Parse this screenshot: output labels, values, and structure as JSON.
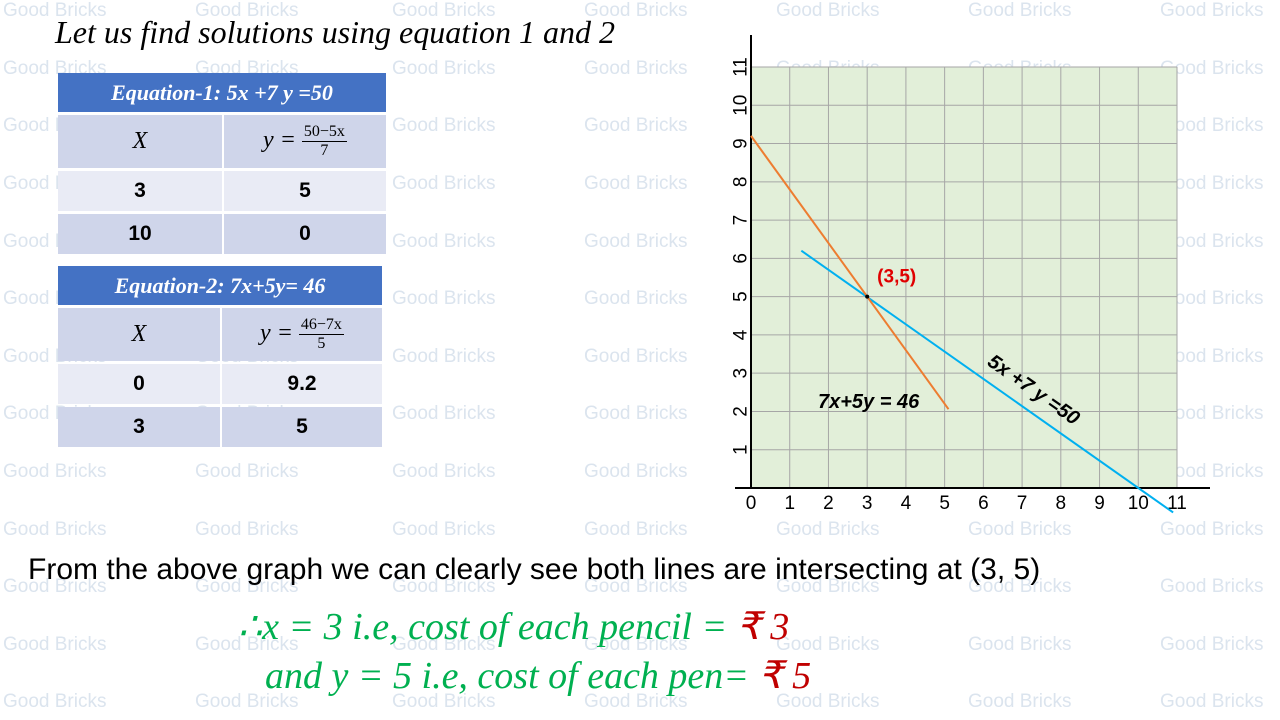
{
  "watermark": "Good Bricks",
  "title": "Let us find solutions using equation 1 and 2",
  "tables": [
    {
      "title": "Equation-1: 5x +7 y =50",
      "header": [
        "X",
        {
          "lhs": "y =",
          "num": "50−5x",
          "den": "7"
        }
      ],
      "rows": [
        [
          "3",
          "5"
        ],
        [
          "10",
          "0"
        ]
      ]
    },
    {
      "title": "Equation-2:  7x+5y= 46",
      "header": [
        "X",
        {
          "lhs": "y =",
          "num": "46−7x",
          "den": "5"
        }
      ],
      "rows": [
        [
          "0",
          "9.2"
        ],
        [
          "3",
          "5"
        ]
      ]
    }
  ],
  "chart_data": {
    "type": "line",
    "xlim": [
      0,
      11
    ],
    "ylim": [
      0,
      11
    ],
    "xticks": [
      0,
      1,
      2,
      3,
      4,
      5,
      6,
      7,
      8,
      9,
      10,
      11
    ],
    "yticks": [
      1,
      2,
      3,
      4,
      5,
      6,
      7,
      8,
      9,
      10,
      11
    ],
    "grid": true,
    "series": [
      {
        "name": "5x +7 y =50",
        "color": "#00b0f0",
        "x": [
          1.3,
          10.9
        ],
        "values": [
          6.2,
          -0.64
        ]
      },
      {
        "name": "7x+5y = 46",
        "color": "#ed7d31",
        "x": [
          0,
          5.1
        ],
        "values": [
          9.2,
          2.06
        ]
      }
    ],
    "annotation": {
      "text": "(3,5)",
      "x": 3,
      "y": 5
    }
  },
  "conclusion": {
    "statement": "From the above graph we can clearly see both lines are intersecting at (3, 5)",
    "line1": {
      "text": "∴x = 3 i.e, cost of each pencil = ",
      "amount": "₹ 3"
    },
    "line2": {
      "text": "and y = 5 i.e, cost of each pen= ",
      "amount": "₹ 5"
    }
  }
}
